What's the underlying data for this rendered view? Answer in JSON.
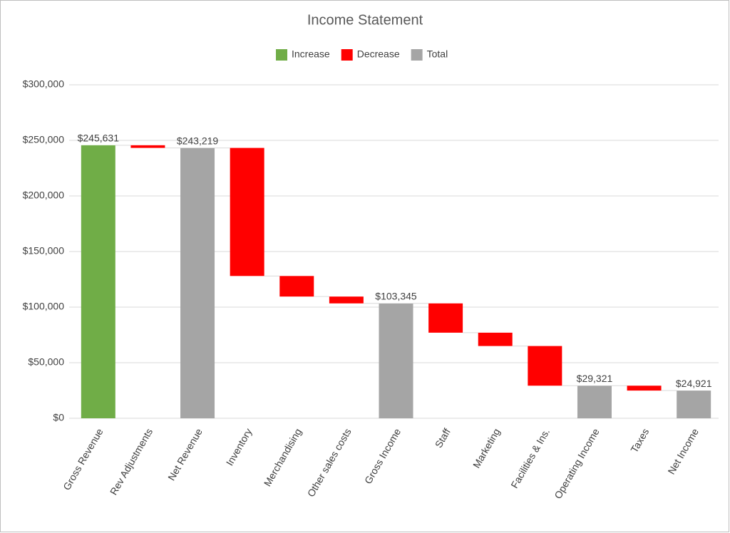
{
  "chart_data": {
    "type": "waterfall",
    "title": "Income Statement",
    "categories": [
      "Gross Revenue",
      "Rev Adjustments",
      "Net Revenue",
      "Inventory",
      "Merchandising",
      "Other sales costs",
      "Gross Income",
      "Staff",
      "Marketing",
      "Facilities & Ins.",
      "Operating Income",
      "Taxes",
      "Net Income"
    ],
    "series": [
      {
        "name": "Increase",
        "color": "#70ad47",
        "values": [
          245631,
          null,
          null,
          null,
          null,
          null,
          null,
          null,
          null,
          null,
          null,
          null,
          null
        ],
        "value_labels": [
          "$245,631",
          null,
          null,
          null,
          null,
          null,
          null,
          null,
          null,
          null,
          null,
          null,
          null
        ]
      },
      {
        "name": "Decrease",
        "color": "#ff0000",
        "values": [
          null,
          2412,
          null,
          115219,
          18500,
          6155,
          null,
          26345,
          12000,
          35679,
          null,
          4400,
          null
        ]
      },
      {
        "name": "Total",
        "color": "#a5a5a5",
        "values": [
          null,
          null,
          243219,
          null,
          null,
          null,
          103345,
          null,
          null,
          null,
          29321,
          null,
          24921
        ],
        "value_labels": [
          null,
          null,
          "$243,219",
          null,
          null,
          null,
          "$103,345",
          null,
          null,
          null,
          "$29,321",
          null,
          "$24,921"
        ]
      }
    ],
    "ylim": [
      0,
      300000
    ],
    "yticks": [
      {
        "value": 0,
        "label": "$0"
      },
      {
        "value": 50000,
        "label": "$50,000"
      },
      {
        "value": 100000,
        "label": "$100,000"
      },
      {
        "value": 150000,
        "label": "$150,000"
      },
      {
        "value": 200000,
        "label": "$200,000"
      },
      {
        "value": 250000,
        "label": "$250,000"
      },
      {
        "value": 300000,
        "label": "$300,000"
      }
    ],
    "grid": true
  }
}
